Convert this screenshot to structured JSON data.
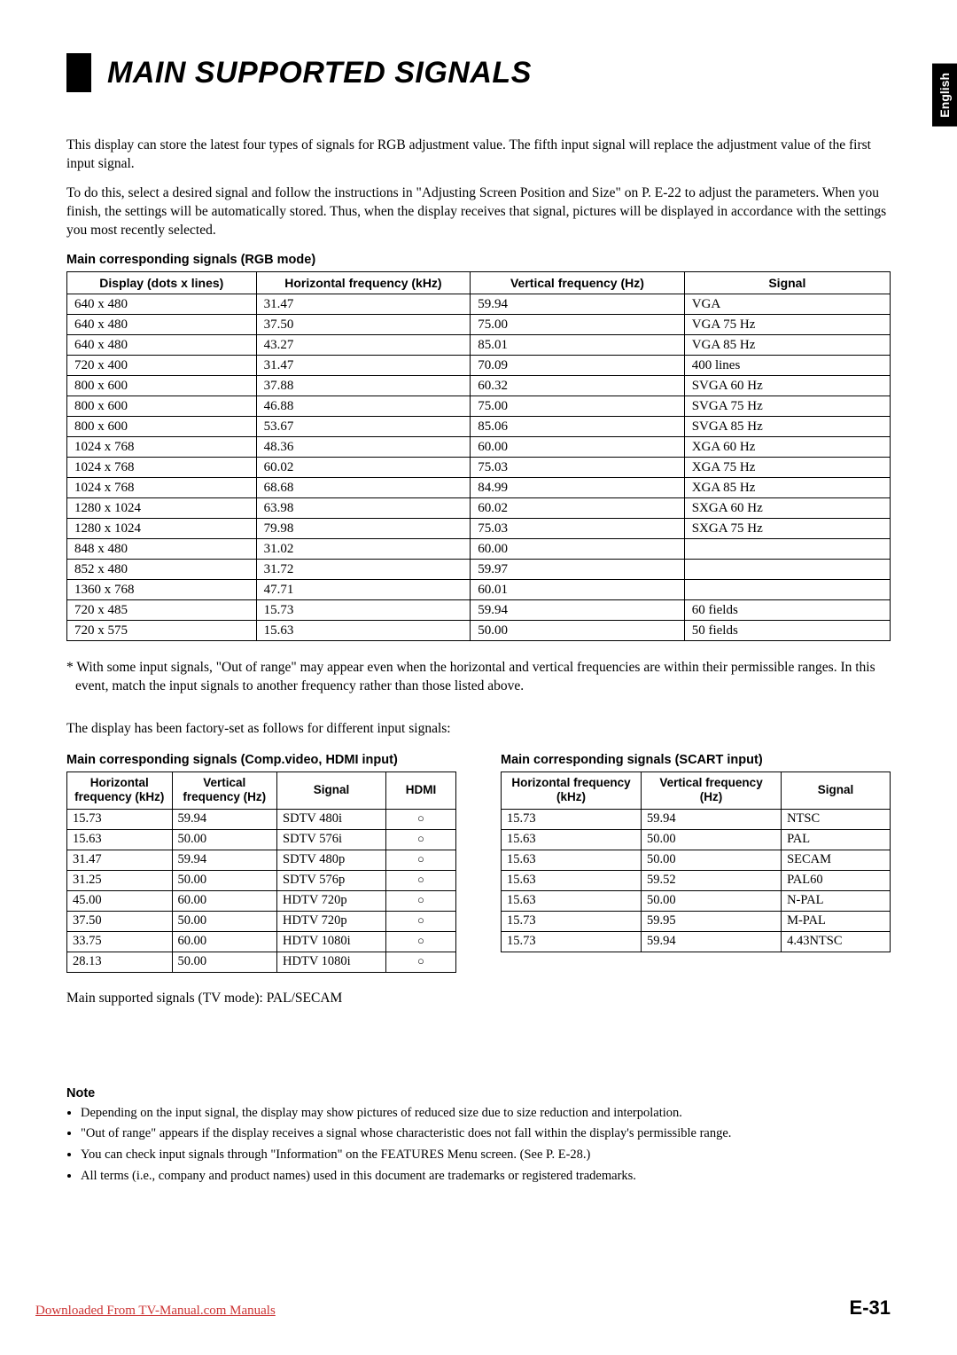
{
  "side_tab": "English",
  "title": "MAIN SUPPORTED SIGNALS",
  "intro": {
    "p1": "This display can store the latest four types of signals for RGB adjustment value. The fifth input signal will replace the adjustment value of the first input signal.",
    "p2": "To do this, select a desired signal and follow the instructions in \"Adjusting Screen Position and Size\" on P. E-22 to adjust the parameters. When you finish, the settings will be automatically stored.  Thus, when the display receives that signal, pictures will be displayed in accordance with the settings you most recently selected."
  },
  "table1": {
    "title": "Main corresponding signals (RGB mode)",
    "columns": [
      "Display (dots x lines)",
      "Horizontal frequency (kHz)",
      "Vertical frequency (Hz)",
      "Signal"
    ],
    "rows": [
      [
        "640 x 480",
        "31.47",
        "59.94",
        "VGA"
      ],
      [
        "640 x 480",
        "37.50",
        "75.00",
        "VGA 75 Hz"
      ],
      [
        "640 x 480",
        "43.27",
        "85.01",
        "VGA 85 Hz"
      ],
      [
        "720 x 400",
        "31.47",
        "70.09",
        "400 lines"
      ],
      [
        "800 x 600",
        "37.88",
        "60.32",
        "SVGA 60 Hz"
      ],
      [
        "800 x 600",
        "46.88",
        "75.00",
        "SVGA 75 Hz"
      ],
      [
        "800 x 600",
        "53.67",
        "85.06",
        "SVGA 85 Hz"
      ],
      [
        "1024 x 768",
        "48.36",
        "60.00",
        "XGA 60 Hz"
      ],
      [
        "1024 x 768",
        "60.02",
        "75.03",
        "XGA 75 Hz"
      ],
      [
        "1024 x 768",
        "68.68",
        "84.99",
        "XGA 85 Hz"
      ],
      [
        "1280 x 1024",
        "63.98",
        "60.02",
        "SXGA 60 Hz"
      ],
      [
        "1280 x 1024",
        "79.98",
        "75.03",
        "SXGA 75 Hz"
      ],
      [
        "848 x 480",
        "31.02",
        "60.00",
        ""
      ],
      [
        "852 x 480",
        "31.72",
        "59.97",
        ""
      ],
      [
        "1360 x 768",
        "47.71",
        "60.01",
        ""
      ],
      [
        "720 x 485",
        "15.73",
        "59.94",
        "60 fields"
      ],
      [
        "720 x 575",
        "15.63",
        "50.00",
        "50 fields"
      ]
    ]
  },
  "footnote": "* With some input signals, \"Out of range\" may appear even when the horizontal and vertical frequencies are within their permissible ranges.  In this event, match the input signals to another frequency rather than those listed above.",
  "factory_note": "The display has been factory-set as follows for different input signals:",
  "table2": {
    "title": "Main corresponding signals (Comp.video, HDMI input)",
    "columns": [
      "Horizontal frequency (kHz)",
      "Vertical frequency (Hz)",
      "Signal",
      "HDMI"
    ],
    "rows": [
      [
        "15.73",
        "59.94",
        "SDTV 480i",
        "○"
      ],
      [
        "15.63",
        "50.00",
        "SDTV 576i",
        "○"
      ],
      [
        "31.47",
        "59.94",
        "SDTV 480p",
        "○"
      ],
      [
        "31.25",
        "50.00",
        "SDTV 576p",
        "○"
      ],
      [
        "45.00",
        "60.00",
        "HDTV 720p",
        "○"
      ],
      [
        "37.50",
        "50.00",
        "HDTV 720p",
        "○"
      ],
      [
        "33.75",
        "60.00",
        "HDTV 1080i",
        "○"
      ],
      [
        "28.13",
        "50.00",
        "HDTV 1080i",
        "○"
      ]
    ]
  },
  "table3": {
    "title": "Main corresponding signals (SCART input)",
    "columns": [
      "Horizontal frequency (kHz)",
      "Vertical frequency (Hz)",
      "Signal"
    ],
    "rows": [
      [
        "15.73",
        "59.94",
        "NTSC"
      ],
      [
        "15.63",
        "50.00",
        "PAL"
      ],
      [
        "15.63",
        "50.00",
        "SECAM"
      ],
      [
        "15.63",
        "59.52",
        "PAL60"
      ],
      [
        "15.63",
        "50.00",
        "N-PAL"
      ],
      [
        "15.73",
        "59.95",
        "M-PAL"
      ],
      [
        "15.73",
        "59.94",
        "4.43NTSC"
      ]
    ]
  },
  "tv_mode": "Main supported signals (TV mode): PAL/SECAM",
  "notes": {
    "heading": "Note",
    "items": [
      "Depending on the input signal, the display may show pictures of reduced size due to size reduction and interpolation.",
      "\"Out of range\" appears if the display receives a signal whose characteristic does not fall within the display's permissible range.",
      "You can check input signals through \"Information\" on the FEATURES Menu screen.  (See P. E-28.)",
      "All terms (i.e., company and product names) used in this document are trademarks or registered trademarks."
    ]
  },
  "footer": {
    "link": "Downloaded From TV-Manual.com Manuals",
    "page": "E-31"
  }
}
